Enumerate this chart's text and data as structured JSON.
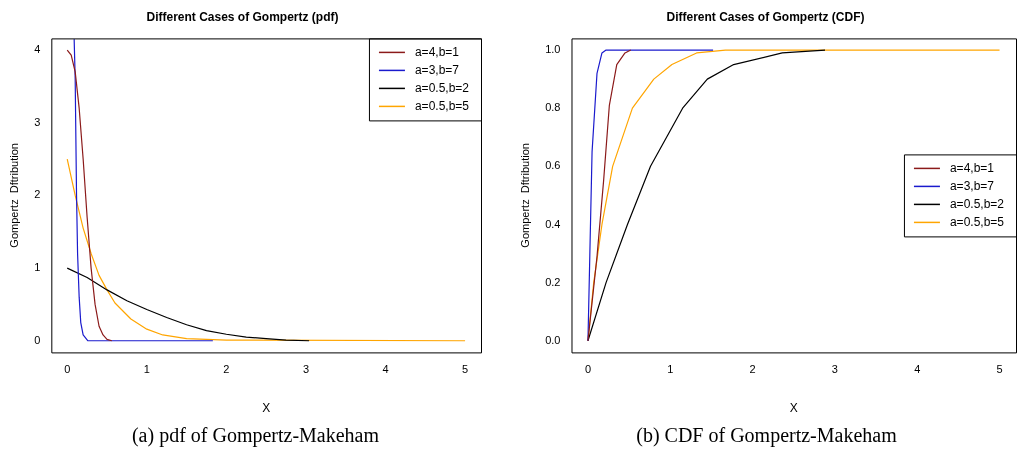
{
  "chart_data": [
    {
      "type": "line",
      "title": "Different Cases of Gompertz (pdf)",
      "xlabel": "X",
      "ylabel": "Gompertz  Dftribution",
      "legend": "top right",
      "grid": false,
      "xlim": [
        -0.2,
        5.2
      ],
      "xticks": [
        0,
        1,
        2,
        3,
        4,
        5
      ],
      "ylim": [
        -0.16,
        4.16
      ],
      "yticks": [
        0,
        1,
        2,
        3,
        4
      ],
      "series": [
        {
          "name": "a=4,b=1",
          "color": "#8b1a1a",
          "x": [
            0,
            0.05,
            0.1,
            0.15,
            0.2,
            0.25,
            0.3,
            0.35,
            0.4,
            0.45,
            0.5,
            0.56
          ],
          "values": [
            4,
            3.93,
            3.7,
            3.2,
            2.5,
            1.7,
            1.0,
            0.5,
            0.2,
            0.08,
            0.02,
            0
          ]
        },
        {
          "name": "a=3,b=7",
          "color": "#1a1acd",
          "x": [
            0.087,
            0.1,
            0.117,
            0.13,
            0.15,
            0.17,
            0.2,
            0.26,
            1.83
          ],
          "values": [
            4.15,
            3.6,
            2.0,
            1.2,
            0.6,
            0.25,
            0.08,
            0,
            0
          ]
        },
        {
          "name": "a=0.5,b=2",
          "color": "#000000",
          "x": [
            0,
            0.25,
            0.5,
            0.75,
            1,
            1.25,
            1.5,
            1.75,
            2,
            2.25,
            2.5,
            2.75,
            3.04
          ],
          "values": [
            1,
            0.87,
            0.7,
            0.55,
            0.43,
            0.32,
            0.22,
            0.14,
            0.09,
            0.05,
            0.03,
            0.01,
            0
          ]
        },
        {
          "name": "a=0.5,b=5",
          "color": "#ffa500",
          "x": [
            0,
            0.1,
            0.2,
            0.3,
            0.4,
            0.5,
            0.6,
            0.8,
            1,
            1.2,
            1.5,
            2,
            5
          ],
          "values": [
            2.5,
            2.0,
            1.55,
            1.2,
            0.9,
            0.7,
            0.52,
            0.3,
            0.16,
            0.08,
            0.03,
            0.01,
            0
          ]
        }
      ],
      "annotations": [
        "(a)  pdf of Gompertz-Makeham"
      ]
    },
    {
      "type": "line",
      "title": "Different Cases of Gompertz (CDF)",
      "xlabel": "X",
      "ylabel": "Gompertz  Dftribution",
      "legend": "right",
      "grid": false,
      "xlim": [
        -0.2,
        5.2
      ],
      "xticks": [
        0,
        1,
        2,
        3,
        4,
        5
      ],
      "ylim": [
        -0.04,
        1.04
      ],
      "yticks": [
        {
          "value": 0,
          "label": "0.0"
        },
        {
          "value": 0.2,
          "label": "0.2"
        },
        {
          "value": 0.4,
          "label": "0.4"
        },
        {
          "value": 0.6,
          "label": "0.6"
        },
        {
          "value": 0.8,
          "label": "0.8"
        },
        {
          "value": 1,
          "label": "1.0"
        }
      ],
      "series": [
        {
          "name": "a=4,b=1",
          "color": "#8b1a1a",
          "x": [
            0,
            0.11,
            0.19,
            0.26,
            0.35,
            0.45,
            0.52
          ],
          "values": [
            0,
            0.29,
            0.55,
            0.81,
            0.95,
            0.99,
            1
          ]
        },
        {
          "name": "a=3,b=7",
          "color": "#1a1acd",
          "x": [
            0,
            0.05,
            0.11,
            0.17,
            0.22,
            1.52
          ],
          "values": [
            0,
            0.65,
            0.92,
            0.99,
            1,
            1
          ]
        },
        {
          "name": "a=0.5,b=2",
          "color": "#000000",
          "x": [
            0,
            0.22,
            0.48,
            0.76,
            1.15,
            1.45,
            1.77,
            2.36,
            2.88
          ],
          "values": [
            0,
            0.2,
            0.4,
            0.6,
            0.8,
            0.9,
            0.95,
            0.99,
            1
          ]
        },
        {
          "name": "a=0.5,b=5",
          "color": "#ffa500",
          "x": [
            0,
            0.07,
            0.17,
            0.3,
            0.54,
            0.8,
            1.02,
            1.32,
            1.67,
            5
          ],
          "values": [
            0,
            0.2,
            0.4,
            0.6,
            0.8,
            0.9,
            0.95,
            0.99,
            1,
            1
          ]
        }
      ],
      "annotations": [
        "(b)  CDF of Gompertz-Makeham"
      ]
    }
  ]
}
